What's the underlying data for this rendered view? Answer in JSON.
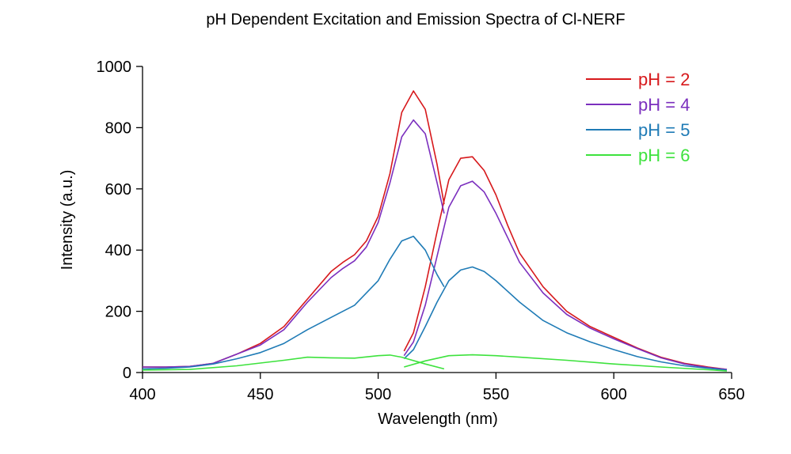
{
  "chart_data": {
    "type": "line",
    "title": "pH Dependent Excitation and Emission Spectra of Cl-NERF",
    "xlabel": "Wavelength (nm)",
    "ylabel": "Intensity (a.u.)",
    "xlim": [
      400,
      650
    ],
    "ylim": [
      0,
      1000
    ],
    "x_ticks": [
      400,
      450,
      500,
      550,
      600,
      650
    ],
    "y_ticks": [
      0,
      200,
      400,
      600,
      800,
      1000
    ],
    "legend_position": "top-right",
    "series": [
      {
        "name": "pH = 2",
        "color": "#d7191c",
        "excitation": {
          "x": [
            400,
            410,
            420,
            430,
            440,
            450,
            460,
            470,
            480,
            485,
            490,
            495,
            500,
            505,
            510,
            515,
            520,
            525,
            528
          ],
          "y": [
            18,
            18,
            20,
            30,
            60,
            95,
            150,
            240,
            330,
            360,
            385,
            430,
            510,
            650,
            850,
            920,
            860,
            680,
            550
          ]
        },
        "emission": {
          "x": [
            511,
            515,
            520,
            525,
            530,
            535,
            540,
            545,
            550,
            555,
            560,
            570,
            580,
            590,
            600,
            610,
            620,
            630,
            640,
            648
          ],
          "y": [
            70,
            130,
            280,
            460,
            630,
            700,
            705,
            660,
            580,
            480,
            390,
            280,
            200,
            150,
            115,
            80,
            50,
            30,
            18,
            10
          ]
        }
      },
      {
        "name": "pH = 4",
        "color": "#7b2fbe",
        "excitation": {
          "x": [
            400,
            410,
            420,
            430,
            440,
            450,
            460,
            470,
            480,
            485,
            490,
            495,
            500,
            505,
            510,
            515,
            520,
            525,
            528
          ],
          "y": [
            18,
            18,
            20,
            30,
            60,
            90,
            140,
            230,
            310,
            340,
            365,
            410,
            490,
            620,
            770,
            825,
            780,
            620,
            520
          ]
        },
        "emission": {
          "x": [
            511,
            515,
            520,
            525,
            530,
            535,
            540,
            545,
            550,
            555,
            560,
            570,
            580,
            590,
            600,
            610,
            620,
            630,
            640,
            648
          ],
          "y": [
            55,
            100,
            220,
            380,
            540,
            610,
            625,
            590,
            520,
            440,
            360,
            260,
            190,
            145,
            110,
            78,
            48,
            28,
            16,
            10
          ]
        }
      },
      {
        "name": "pH = 5",
        "color": "#1f7bb6",
        "excitation": {
          "x": [
            400,
            410,
            420,
            430,
            440,
            450,
            460,
            470,
            480,
            490,
            500,
            505,
            510,
            515,
            520,
            525,
            528
          ],
          "y": [
            12,
            14,
            18,
            28,
            45,
            65,
            95,
            140,
            180,
            220,
            300,
            370,
            430,
            445,
            400,
            320,
            280
          ]
        },
        "emission": {
          "x": [
            511,
            515,
            520,
            525,
            530,
            535,
            540,
            545,
            550,
            560,
            570,
            580,
            590,
            600,
            610,
            620,
            630,
            640,
            648
          ],
          "y": [
            45,
            75,
            150,
            230,
            300,
            335,
            345,
            330,
            300,
            230,
            170,
            130,
            100,
            75,
            52,
            35,
            22,
            14,
            8
          ]
        }
      },
      {
        "name": "pH = 6",
        "color": "#3de23d",
        "excitation": {
          "x": [
            400,
            420,
            440,
            460,
            470,
            480,
            490,
            500,
            505,
            510,
            520,
            528
          ],
          "y": [
            8,
            10,
            22,
            40,
            50,
            48,
            47,
            55,
            57,
            50,
            28,
            12
          ]
        },
        "emission": {
          "x": [
            511,
            520,
            530,
            540,
            550,
            560,
            580,
            600,
            620,
            640,
            648
          ],
          "y": [
            18,
            38,
            55,
            58,
            55,
            50,
            40,
            28,
            18,
            9,
            5
          ]
        }
      }
    ]
  }
}
